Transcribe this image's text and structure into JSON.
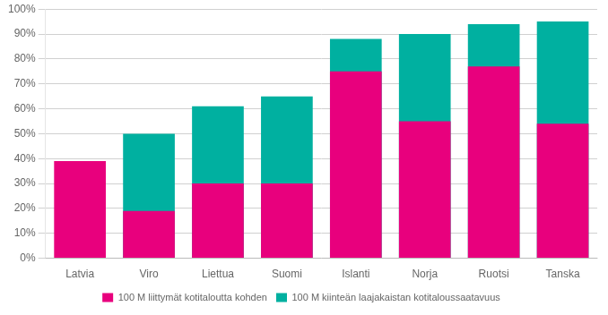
{
  "chart_data": {
    "type": "bar",
    "categories": [
      "Latvia",
      "Viro",
      "Liettua",
      "Suomi",
      "Islanti",
      "Norja",
      "Ruotsi",
      "Tanska"
    ],
    "series": [
      {
        "name": "100 M kiinteän laajakaistan kotitaloussaatavuus",
        "color": "#00B0A0",
        "values": [
          null,
          50,
          61,
          65,
          88,
          90,
          94,
          95
        ]
      },
      {
        "name": "100 M liittymät kotitaloutta kohden",
        "color": "#E8007D",
        "values": [
          39,
          19,
          30,
          30,
          75,
          55,
          77,
          54
        ]
      }
    ],
    "ylim": [
      0,
      100
    ],
    "yticks": [
      {
        "value": 0,
        "label": "0%"
      },
      {
        "value": 10,
        "label": "10%"
      },
      {
        "value": 20,
        "label": "20%"
      },
      {
        "value": 30,
        "label": "30%"
      },
      {
        "value": 40,
        "label": "40%"
      },
      {
        "value": 50,
        "label": "50%"
      },
      {
        "value": 60,
        "label": "60%"
      },
      {
        "value": 70,
        "label": "70%"
      },
      {
        "value": 80,
        "label": "80%"
      },
      {
        "value": 90,
        "label": "90%"
      },
      {
        "value": 100,
        "label": "100%"
      }
    ],
    "grid": true,
    "legend": "bottom"
  }
}
